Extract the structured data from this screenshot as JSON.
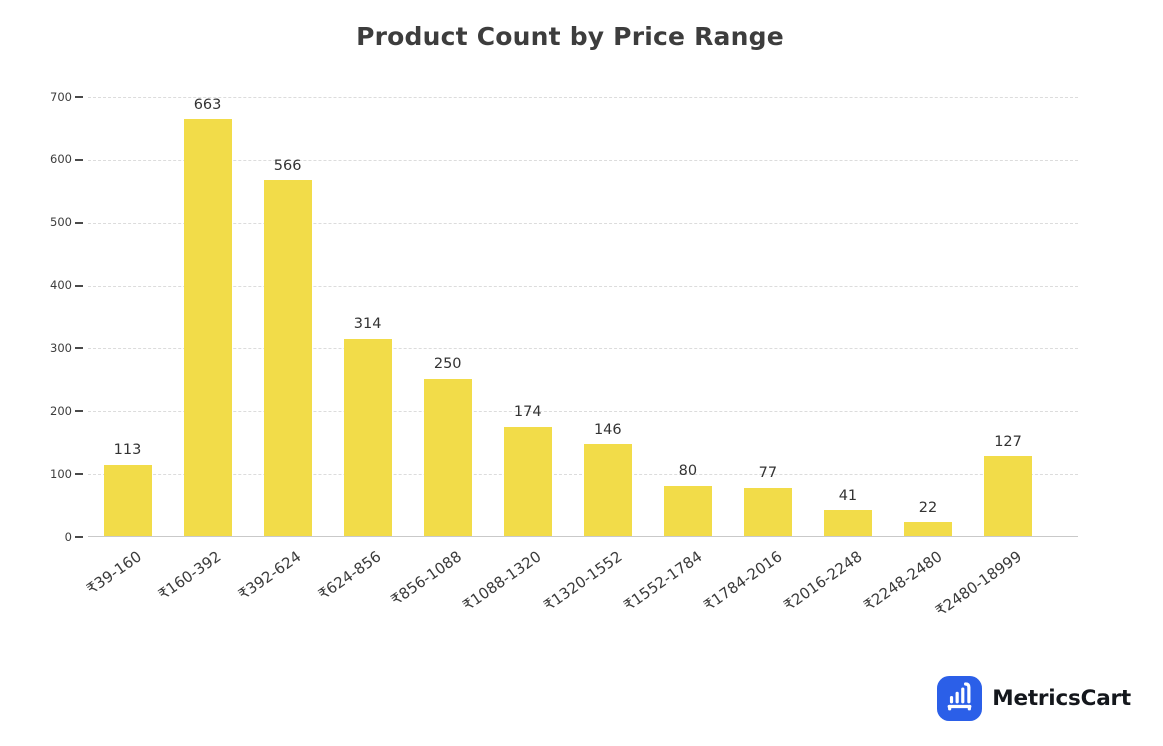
{
  "chart_data": {
    "type": "bar",
    "title": "Product Count by Price Range",
    "categories": [
      "₹39-160",
      "₹160-392",
      "₹392-624",
      "₹624-856",
      "₹856-1088",
      "₹1088-1320",
      "₹1320-1552",
      "₹1552-1784",
      "₹1784-2016",
      "₹2016-2248",
      "₹2248-2480",
      "₹2480-18999"
    ],
    "values": [
      113,
      663,
      566,
      314,
      250,
      174,
      146,
      80,
      77,
      41,
      22,
      127
    ],
    "xlabel": "",
    "ylabel": "",
    "ylim": [
      0,
      700
    ],
    "yticks": [
      0,
      100,
      200,
      300,
      400,
      500,
      600,
      700
    ],
    "grid": "horizontal-dashed",
    "legend": "none",
    "value_labels": true,
    "bar_color": "#F2DC49"
  },
  "branding": {
    "logo_text": "MetricsCart",
    "logo_color": "#2B5FE8"
  },
  "colors": {
    "background": "#ffffff",
    "title": "#3d3d3d",
    "axis_labels": "#3b3b3b",
    "gridline": "#dcdcdc",
    "axis_line": "#c9c9c9",
    "value_label": "#333333"
  }
}
